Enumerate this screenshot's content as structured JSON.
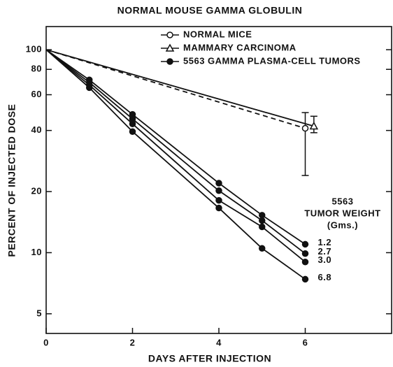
{
  "chart_data": {
    "type": "line",
    "title": "NORMAL MOUSE GAMMA GLOBULIN",
    "xlabel": "DAYS AFTER INJECTION",
    "ylabel": "PERCENT OF INJECTED DOSE",
    "xlim": [
      0,
      8
    ],
    "xticks": [
      0,
      2,
      4,
      6
    ],
    "ylim": [
      4,
      130
    ],
    "yticks": [
      5,
      10,
      20,
      40,
      60,
      80,
      100
    ],
    "log_y": true,
    "color": "#111111",
    "annotation": [
      "5563",
      "TUMOR WEIGHT",
      "(Gms.)"
    ],
    "series": [
      {
        "name": "NORMAL MICE",
        "marker": "open-circle",
        "dashed": true,
        "x": [
          0,
          6
        ],
        "values": [
          100,
          41
        ],
        "error_low": 24,
        "error_high": 49
      },
      {
        "name": "MAMMARY CARCINOMA",
        "marker": "open-triangle",
        "dashed": false,
        "x": [
          0,
          6.2
        ],
        "values": [
          100,
          42
        ],
        "error_low": 39,
        "error_high": 47
      },
      {
        "name": "5563 GAMMA PLASMA-CELL TUMORS",
        "marker": "filled-circle",
        "dashed": false,
        "x": [
          0,
          1,
          2,
          4,
          5,
          6
        ],
        "lines": [
          {
            "label": "1.2",
            "values": [
              100,
              71,
              48,
              22,
              15.3,
              11
            ]
          },
          {
            "label": "2.7",
            "values": [
              100,
              69,
              45.6,
              20.2,
              14.4,
              9.9
            ]
          },
          {
            "label": "3.0",
            "values": [
              100,
              67,
              43.1,
              18.1,
              13.4,
              9.0
            ]
          },
          {
            "label": "6.8",
            "values": [
              100,
              65,
              39.5,
              16.6,
              10.5,
              7.4
            ]
          }
        ]
      }
    ]
  }
}
